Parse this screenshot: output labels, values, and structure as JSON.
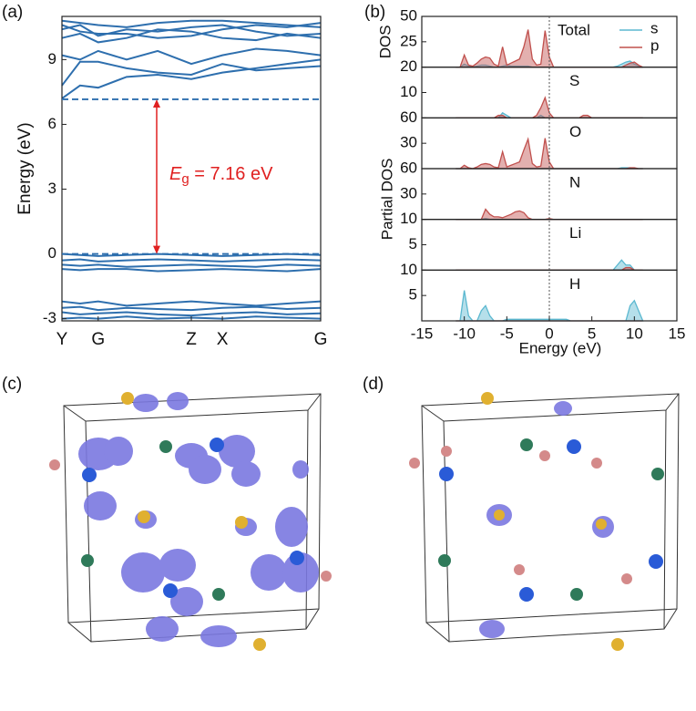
{
  "panel_labels": [
    "(a)",
    "(b)",
    "(c)",
    "(d)"
  ],
  "chart_data": [
    {
      "type": "line",
      "ylabel": "Energy (eV)",
      "xlim": [
        0,
        1
      ],
      "xticks": [
        {
          "value": 0,
          "label": "Y"
        },
        {
          "value": 0.14,
          "label": "G"
        },
        {
          "value": 0.5,
          "label": "Z"
        },
        {
          "value": 0.62,
          "label": "X"
        },
        {
          "value": 1,
          "label": "G"
        }
      ],
      "ylim": [
        -3.1,
        11
      ],
      "yticks": [
        -3,
        0,
        3,
        6,
        9
      ],
      "color": "#2e6fae",
      "x": [
        0,
        0.07,
        0.14,
        0.25,
        0.37,
        0.5,
        0.62,
        0.75,
        0.87,
        1
      ],
      "series": [
        {
          "values": [
            7.2,
            7.8,
            7.7,
            8.2,
            8.3,
            8.1,
            8.4,
            8.6,
            8.8,
            9.0
          ]
        },
        {
          "values": [
            7.8,
            8.9,
            8.9,
            8.6,
            8.4,
            8.3,
            8.8,
            8.5,
            8.6,
            8.7
          ]
        },
        {
          "values": [
            9.2,
            9.0,
            9.4,
            9.0,
            9.4,
            8.8,
            9.2,
            9.5,
            9.4,
            9.2
          ]
        },
        {
          "values": [
            10.0,
            10.2,
            9.8,
            10.0,
            10.4,
            10.3,
            10.0,
            9.9,
            10.2,
            10.0
          ]
        },
        {
          "values": [
            10.4,
            10.6,
            10.1,
            10.4,
            10.3,
            10.5,
            10.6,
            10.3,
            10.1,
            10.2
          ]
        },
        {
          "values": [
            10.8,
            10.7,
            10.6,
            10.5,
            10.7,
            10.8,
            10.8,
            10.7,
            10.6,
            10.5
          ]
        },
        {
          "values": [
            10.6,
            10.3,
            10.2,
            10.2,
            10.0,
            10.1,
            10.4,
            10.6,
            10.5,
            10.7
          ]
        },
        {
          "values": [
            0,
            -0.05,
            -0.1,
            -0.05,
            0,
            -0.05,
            -0.1,
            -0.05,
            0,
            -0.05
          ]
        },
        {
          "values": [
            -0.3,
            -0.25,
            -0.35,
            -0.3,
            -0.25,
            -0.3,
            -0.35,
            -0.3,
            -0.25,
            -0.3
          ]
        },
        {
          "values": [
            -0.5,
            -0.55,
            -0.5,
            -0.6,
            -0.55,
            -0.5,
            -0.55,
            -0.6,
            -0.5,
            -0.55
          ]
        },
        {
          "values": [
            -0.7,
            -0.75,
            -0.7,
            -0.7,
            -0.8,
            -0.75,
            -0.7,
            -0.75,
            -0.8,
            -0.7
          ]
        },
        {
          "values": [
            -2.2,
            -2.3,
            -2.2,
            -2.4,
            -2.3,
            -2.2,
            -2.3,
            -2.4,
            -2.3,
            -2.2
          ]
        },
        {
          "values": [
            -2.5,
            -2.45,
            -2.6,
            -2.5,
            -2.55,
            -2.6,
            -2.5,
            -2.45,
            -2.55,
            -2.5
          ]
        },
        {
          "values": [
            -2.7,
            -2.8,
            -2.75,
            -2.7,
            -2.8,
            -2.85,
            -2.75,
            -2.7,
            -2.8,
            -2.75
          ]
        },
        {
          "values": [
            -3.0,
            -2.95,
            -3.0,
            -2.9,
            -3.0,
            -2.95,
            -3.0,
            -2.9,
            -2.95,
            -3.0
          ]
        }
      ],
      "gap": {
        "vbm": 0,
        "cbm": 7.16,
        "color": "#e02020",
        "label_symbol": "E",
        "label_subscript": "g",
        "label_text": " = 7.16 eV"
      }
    },
    {
      "type": "area",
      "ylabel_top": "DOS",
      "ylabel": "Partial DOS",
      "xlabel": "Energy (eV)",
      "xlim": [
        -15,
        15
      ],
      "xticks": [
        -15,
        -10,
        -5,
        0,
        5,
        10,
        15
      ],
      "vline": 0,
      "x": [
        -11,
        -10.5,
        -10,
        -9.5,
        -9,
        -8.5,
        -8,
        -7.5,
        -7,
        -6.5,
        -6,
        -5.5,
        -5,
        -4.5,
        -4,
        -3.5,
        -3,
        -2.5,
        -2,
        -1.5,
        -1,
        -0.5,
        0,
        0.5,
        1,
        1.5,
        2,
        2.5,
        3,
        3.5,
        4,
        4.5,
        5,
        5.5,
        6,
        6.5,
        7,
        7.5,
        8,
        8.5,
        9,
        9.5,
        10,
        10.5,
        11
      ],
      "panels": [
        {
          "label": "Total",
          "ylim": [
            0,
            50
          ],
          "yticks": [
            25,
            50
          ],
          "series": [
            {
              "name": "s",
              "color": "#5bb8d0",
              "values": [
                0,
                0,
                3,
                1,
                0,
                1,
                2,
                2,
                1,
                0,
                0,
                1,
                2,
                1,
                1,
                1,
                1,
                1,
                0,
                0,
                0,
                0,
                0,
                0,
                0,
                0,
                0,
                0,
                0,
                0,
                0,
                0,
                0,
                0,
                0,
                0,
                0,
                0,
                1,
                3,
                5,
                6,
                3,
                1,
                0
              ]
            },
            {
              "name": "p",
              "color": "#c0504d",
              "values": [
                0,
                0,
                12,
                2,
                1,
                4,
                8,
                10,
                9,
                3,
                1,
                20,
                2,
                4,
                6,
                8,
                20,
                37,
                8,
                2,
                3,
                36,
                10,
                0,
                0,
                0,
                0,
                0,
                0,
                0,
                0,
                0,
                0,
                0,
                0,
                0,
                0,
                0,
                0,
                0,
                2,
                4,
                5,
                2,
                0
              ]
            }
          ]
        },
        {
          "label": "S",
          "ylim": [
            0,
            20
          ],
          "yticks": [
            10,
            20
          ],
          "series": [
            {
              "color": "#5bb8d0",
              "values": [
                0,
                0,
                0,
                0,
                0,
                0,
                0,
                0,
                0,
                0,
                0,
                2,
                1,
                0,
                0,
                0,
                0,
                0,
                0,
                0,
                1,
                0,
                0,
                0,
                0,
                0,
                0,
                0,
                0,
                0,
                0,
                0,
                0,
                0,
                0,
                0,
                0,
                0,
                0,
                0,
                0,
                0,
                0,
                0,
                0
              ]
            },
            {
              "color": "#c0504d",
              "values": [
                0,
                0,
                0,
                0,
                0,
                0,
                0,
                0,
                0,
                0,
                1,
                1,
                0,
                0,
                0,
                0,
                0,
                0,
                0,
                1,
                4,
                8,
                2,
                0,
                0,
                0,
                0,
                0,
                0,
                0,
                1,
                1,
                0,
                0,
                0,
                0,
                0,
                0,
                0,
                0,
                0,
                0,
                0,
                0,
                0
              ]
            }
          ]
        },
        {
          "label": "O",
          "ylim": [
            0,
            60
          ],
          "yticks": [
            30,
            60
          ],
          "series": [
            {
              "color": "#5bb8d0",
              "values": [
                0,
                0,
                0,
                0,
                0,
                0,
                0,
                0,
                0,
                0,
                0,
                0,
                0,
                0,
                0,
                0,
                0,
                0,
                0,
                0,
                0,
                0,
                0,
                0,
                0,
                0,
                0,
                0,
                0,
                0,
                0,
                0,
                0,
                0,
                0,
                0,
                0,
                0,
                0,
                1,
                1,
                1,
                0,
                0,
                0
              ]
            },
            {
              "color": "#c0504d",
              "values": [
                0,
                0,
                4,
                1,
                0,
                2,
                5,
                6,
                5,
                2,
                1,
                20,
                2,
                4,
                6,
                8,
                22,
                35,
                6,
                2,
                3,
                36,
                8,
                0,
                0,
                0,
                0,
                0,
                0,
                0,
                0,
                0,
                0,
                0,
                0,
                0,
                0,
                0,
                0,
                0,
                0,
                1,
                1,
                0,
                0
              ]
            }
          ]
        },
        {
          "label": "N",
          "ylim": [
            0,
            60
          ],
          "yticks": [
            30,
            60
          ],
          "series": [
            {
              "color": "#5bb8d0",
              "values": [
                0,
                0,
                0,
                0,
                0,
                0,
                0,
                1,
                0,
                0,
                0,
                0,
                0,
                0,
                0,
                0,
                0,
                0,
                0,
                0,
                0,
                0,
                0,
                0,
                0,
                0,
                0,
                0,
                0,
                0,
                0,
                0,
                0,
                0,
                0,
                0,
                0,
                0,
                0,
                0,
                0,
                0,
                0,
                0,
                0
              ]
            },
            {
              "color": "#c0504d",
              "values": [
                0,
                0,
                0,
                0,
                0,
                0,
                0,
                12,
                6,
                3,
                3,
                2,
                4,
                6,
                9,
                10,
                8,
                2,
                0,
                0,
                0,
                0,
                1,
                0,
                0,
                0,
                0,
                0,
                0,
                0,
                0,
                0,
                0,
                0,
                0,
                0,
                0,
                0,
                0,
                0,
                0,
                0,
                0,
                0,
                0
              ]
            }
          ]
        },
        {
          "label": "Li",
          "ylim": [
            0,
            10
          ],
          "yticks": [
            5,
            10
          ],
          "series": [
            {
              "color": "#5bb8d0",
              "values": [
                0,
                0,
                0,
                0,
                0,
                0,
                0,
                0,
                0,
                0,
                0,
                0,
                0,
                0,
                0,
                0,
                0,
                0,
                0,
                0,
                0,
                0,
                0,
                0,
                0,
                0,
                0,
                0,
                0,
                0,
                0,
                0,
                0,
                0,
                0,
                0,
                0,
                0,
                1,
                2,
                1,
                1,
                0,
                0,
                0
              ]
            },
            {
              "color": "#c0504d",
              "values": [
                0,
                0,
                0,
                0,
                0,
                0,
                0,
                0,
                0,
                0,
                0,
                0,
                0,
                0,
                0,
                0,
                0,
                0,
                0,
                0,
                0,
                0,
                0,
                0,
                0,
                0,
                0,
                0,
                0,
                0,
                0,
                0,
                0,
                0,
                0,
                0,
                0,
                0,
                0,
                0,
                0.5,
                0.5,
                0,
                0,
                0
              ]
            }
          ]
        },
        {
          "label": "H",
          "ylim": [
            0,
            10
          ],
          "yticks": [
            5,
            10
          ],
          "series": [
            {
              "color": "#5bb8d0",
              "values": [
                0,
                0,
                6,
                1,
                0,
                0,
                2,
                3,
                1,
                0,
                0,
                0,
                0.3,
                0.3,
                0.3,
                0.3,
                0.3,
                0.3,
                0.3,
                0.3,
                0.3,
                0.3,
                0.3,
                0.3,
                0.3,
                0.3,
                0.3,
                0,
                0,
                0,
                0,
                0,
                0,
                0,
                0,
                0,
                0,
                0,
                0,
                0,
                0,
                3,
                4,
                2,
                0
              ]
            },
            {
              "color": "#c0504d",
              "values": [
                0,
                0,
                0,
                0,
                0,
                0,
                0,
                0,
                0,
                0,
                0,
                0,
                0,
                0,
                0,
                0,
                0,
                0,
                0,
                0,
                0,
                0,
                0,
                0,
                0,
                0,
                0,
                0,
                0,
                0,
                0,
                0,
                0,
                0,
                0,
                0,
                0,
                0,
                0,
                0,
                0,
                0,
                0,
                0,
                0
              ]
            }
          ]
        }
      ]
    }
  ]
}
